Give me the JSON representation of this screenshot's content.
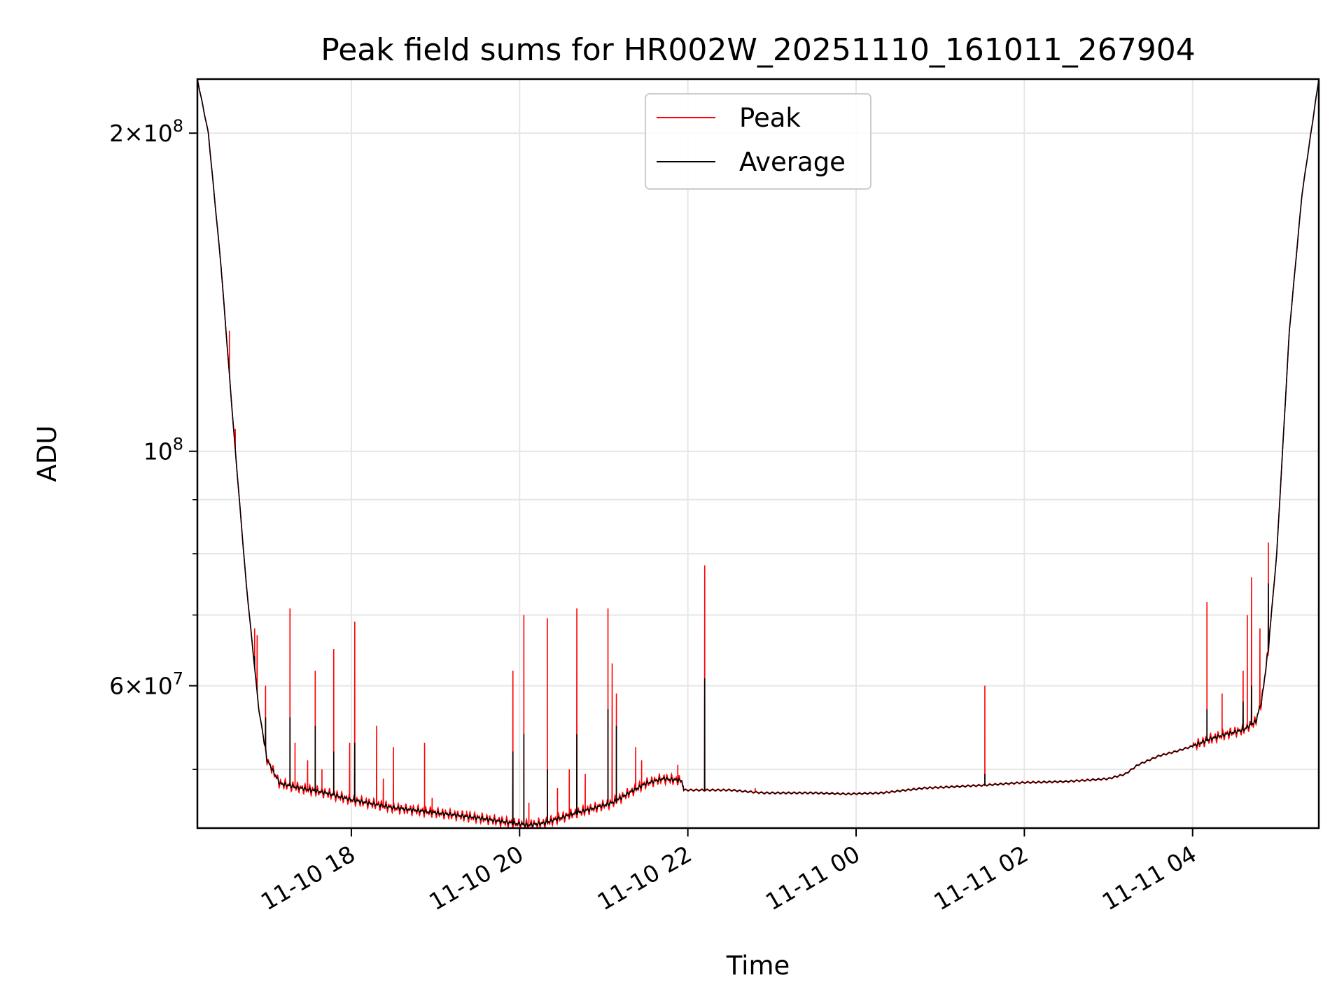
{
  "chart_data": {
    "type": "line",
    "title": "Peak field sums for HR002W_20251110_161011_267904",
    "xlabel": "Time",
    "ylabel": "ADU",
    "yscale": "log",
    "ylim": [
      44000000,
      225000000
    ],
    "xlim_hours": [
      16.17,
      29.5
    ],
    "legend_position": "upper center",
    "grid": true,
    "x_ticks": [
      {
        "hour": 18,
        "label": "11-10 18"
      },
      {
        "hour": 20,
        "label": "11-10 20"
      },
      {
        "hour": 22,
        "label": "11-10 22"
      },
      {
        "hour": 24,
        "label": "11-11 00"
      },
      {
        "hour": 26,
        "label": "11-11 02"
      },
      {
        "hour": 28,
        "label": "11-11 04"
      }
    ],
    "y_major_ticks": [
      {
        "value": 60000000,
        "base": "6",
        "exp": "7"
      },
      {
        "value": 100000000,
        "base": "",
        "exp": "8"
      },
      {
        "value": 200000000,
        "base": "2",
        "exp": "8"
      }
    ],
    "y_minor_ticks": [
      50000000,
      70000000,
      80000000,
      90000000
    ],
    "x_minor_ticks": [],
    "series": [
      {
        "name": "Peak",
        "color": "#ff0000",
        "baseline": [
          [
            16.17,
            225000000
          ],
          [
            16.3,
            200000000
          ],
          [
            16.45,
            150000000
          ],
          [
            16.6,
            105000000
          ],
          [
            16.75,
            75000000
          ],
          [
            16.9,
            57000000
          ],
          [
            17.0,
            51000000
          ],
          [
            17.15,
            48500000
          ],
          [
            17.4,
            48000000
          ],
          [
            17.7,
            47500000
          ],
          [
            18.0,
            46800000
          ],
          [
            18.5,
            46000000
          ],
          [
            19.0,
            45500000
          ],
          [
            19.5,
            45000000
          ],
          [
            19.9,
            44500000
          ],
          [
            20.1,
            44300000
          ],
          [
            20.3,
            44500000
          ],
          [
            20.6,
            45300000
          ],
          [
            20.9,
            46000000
          ],
          [
            21.1,
            46500000
          ],
          [
            21.3,
            47500000
          ],
          [
            21.5,
            48500000
          ],
          [
            21.7,
            49000000
          ],
          [
            21.93,
            48800000
          ],
          [
            21.95,
            47800000
          ],
          [
            22.5,
            47800000
          ],
          [
            22.9,
            47500000
          ],
          [
            23.5,
            47500000
          ],
          [
            23.9,
            47400000
          ],
          [
            24.3,
            47500000
          ],
          [
            24.8,
            48000000
          ],
          [
            25.5,
            48300000
          ],
          [
            26.0,
            48600000
          ],
          [
            26.5,
            48700000
          ],
          [
            27.0,
            49000000
          ],
          [
            27.2,
            49500000
          ],
          [
            27.35,
            50500000
          ],
          [
            27.6,
            51500000
          ],
          [
            27.8,
            52000000
          ],
          [
            28.0,
            52600000
          ],
          [
            28.2,
            53400000
          ],
          [
            28.4,
            54000000
          ],
          [
            28.6,
            54500000
          ],
          [
            28.75,
            55500000
          ],
          [
            28.82,
            58000000
          ],
          [
            28.9,
            65000000
          ],
          [
            29.0,
            80000000
          ],
          [
            29.15,
            130000000
          ],
          [
            29.3,
            175000000
          ],
          [
            29.5,
            225000000
          ]
        ],
        "spikes": [
          [
            16.45,
            150000000
          ],
          [
            16.55,
            130000000
          ],
          [
            16.62,
            105000000
          ],
          [
            16.85,
            68000000
          ],
          [
            16.88,
            67000000
          ],
          [
            16.98,
            60000000
          ],
          [
            17.27,
            71000000
          ],
          [
            17.33,
            53000000
          ],
          [
            17.48,
            51000000
          ],
          [
            17.57,
            62000000
          ],
          [
            17.65,
            50000000
          ],
          [
            17.79,
            65000000
          ],
          [
            17.98,
            53000000
          ],
          [
            18.04,
            69000000
          ],
          [
            18.3,
            55000000
          ],
          [
            18.38,
            49000000
          ],
          [
            18.5,
            52500000
          ],
          [
            18.87,
            53000000
          ],
          [
            18.96,
            47000000
          ],
          [
            19.37,
            45700000
          ],
          [
            19.8,
            44800000
          ],
          [
            19.92,
            62000000
          ],
          [
            20.05,
            70000000
          ],
          [
            20.11,
            46500000
          ],
          [
            20.33,
            69500000
          ],
          [
            20.45,
            48000000
          ],
          [
            20.59,
            50000000
          ],
          [
            20.68,
            71000000
          ],
          [
            20.78,
            49500000
          ],
          [
            21.05,
            71000000
          ],
          [
            21.1,
            63000000
          ],
          [
            21.15,
            59000000
          ],
          [
            21.38,
            52500000
          ],
          [
            21.45,
            51000000
          ],
          [
            21.88,
            50500000
          ],
          [
            22.2,
            78000000
          ],
          [
            22.8,
            48000000
          ],
          [
            25.53,
            60000000
          ],
          [
            28.17,
            72000000
          ],
          [
            28.35,
            59000000
          ],
          [
            28.6,
            62000000
          ],
          [
            28.65,
            70000000
          ],
          [
            28.7,
            76000000
          ],
          [
            28.8,
            68000000
          ],
          [
            28.9,
            82000000
          ]
        ]
      },
      {
        "name": "Average",
        "color": "#000000",
        "baseline": [
          [
            16.17,
            225000000
          ],
          [
            16.3,
            200000000
          ],
          [
            16.45,
            150000000
          ],
          [
            16.6,
            105000000
          ],
          [
            16.75,
            75000000
          ],
          [
            16.9,
            57000000
          ],
          [
            17.0,
            51000000
          ],
          [
            17.15,
            48500000
          ],
          [
            17.4,
            48000000
          ],
          [
            17.7,
            47500000
          ],
          [
            18.0,
            46800000
          ],
          [
            18.5,
            46000000
          ],
          [
            19.0,
            45500000
          ],
          [
            19.5,
            45000000
          ],
          [
            19.9,
            44500000
          ],
          [
            20.1,
            44300000
          ],
          [
            20.3,
            44500000
          ],
          [
            20.6,
            45300000
          ],
          [
            20.9,
            46000000
          ],
          [
            21.1,
            46500000
          ],
          [
            21.3,
            47500000
          ],
          [
            21.5,
            48500000
          ],
          [
            21.7,
            49000000
          ],
          [
            21.93,
            48800000
          ],
          [
            21.95,
            47800000
          ],
          [
            22.5,
            47800000
          ],
          [
            22.9,
            47500000
          ],
          [
            23.5,
            47500000
          ],
          [
            23.9,
            47400000
          ],
          [
            24.3,
            47500000
          ],
          [
            24.8,
            48000000
          ],
          [
            25.5,
            48300000
          ],
          [
            26.0,
            48600000
          ],
          [
            26.5,
            48700000
          ],
          [
            27.0,
            49000000
          ],
          [
            27.2,
            49500000
          ],
          [
            27.35,
            50500000
          ],
          [
            27.6,
            51500000
          ],
          [
            27.8,
            52000000
          ],
          [
            28.0,
            52600000
          ],
          [
            28.2,
            53400000
          ],
          [
            28.4,
            54000000
          ],
          [
            28.6,
            54500000
          ],
          [
            28.75,
            55500000
          ],
          [
            28.82,
            58000000
          ],
          [
            28.9,
            65000000
          ],
          [
            29.0,
            80000000
          ],
          [
            29.15,
            130000000
          ],
          [
            29.3,
            175000000
          ],
          [
            29.5,
            225000000
          ]
        ],
        "spikes": [
          [
            16.85,
            64000000
          ],
          [
            16.98,
            56000000
          ],
          [
            17.27,
            56000000
          ],
          [
            17.57,
            55000000
          ],
          [
            17.79,
            52000000
          ],
          [
            18.04,
            53000000
          ],
          [
            19.92,
            52000000
          ],
          [
            20.05,
            54000000
          ],
          [
            20.33,
            50000000
          ],
          [
            20.68,
            54000000
          ],
          [
            21.05,
            57000000
          ],
          [
            21.15,
            55000000
          ],
          [
            22.2,
            61000000
          ],
          [
            25.53,
            49500000
          ],
          [
            28.17,
            57000000
          ],
          [
            28.6,
            58000000
          ],
          [
            28.7,
            60000000
          ],
          [
            28.9,
            75000000
          ]
        ]
      }
    ]
  }
}
